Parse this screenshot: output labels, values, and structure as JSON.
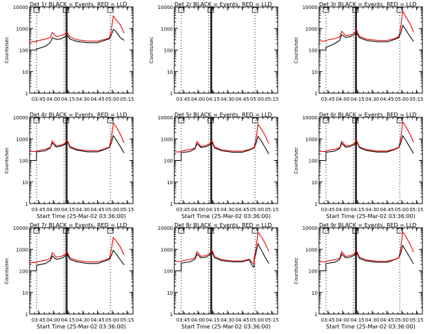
{
  "figure": {
    "xtick_labels": [
      "03:45",
      "04:00",
      "04:15",
      "04:30",
      "04:45",
      "05:00",
      "05:15"
    ],
    "ytick_labels": [
      "1",
      "10",
      "100",
      "1000",
      "10000"
    ],
    "colors": {
      "events": "#000000",
      "lld": "#e00000",
      "axes": "#000000",
      "background": "#ffffff"
    }
  },
  "chart_data": [
    {
      "type": "line",
      "detector": "1r",
      "title": "Det 1r BLACK = Events, RED = LLD",
      "xlabel": "",
      "ylabel": "Counts/sec",
      "xlim": [
        "03:36",
        "05:21"
      ],
      "ylim": [
        1,
        10000
      ],
      "yscale": "log",
      "vlines_dotted": [
        "03:43",
        "04:11",
        "04:58"
      ],
      "vlines_solid": [
        "04:13",
        "04:14"
      ],
      "series": [
        {
          "name": "Events",
          "color": "#000000",
          "x": [
            "03:36",
            "03:42",
            "03:43",
            "03:52",
            "03:57",
            "03:59",
            "04:03",
            "04:08",
            "04:12",
            "04:14",
            "04:17",
            "04:24",
            "04:35",
            "04:45",
            "04:52",
            "04:57",
            "04:59",
            "05:01",
            "05:04",
            "05:08",
            "05:12"
          ],
          "values": [
            100,
            100,
            110,
            150,
            220,
            380,
            310,
            330,
            420,
            500,
            320,
            250,
            220,
            220,
            280,
            330,
            500,
            900,
            700,
            380,
            280
          ]
        },
        {
          "name": "LLD",
          "color": "#e00000",
          "x": [
            "03:36",
            "03:42",
            "03:43",
            "03:52",
            "03:57",
            "03:59",
            "04:03",
            "04:08",
            "04:12",
            "04:14",
            "04:17",
            "04:24",
            "04:35",
            "04:45",
            "04:52",
            "04:57",
            "04:59",
            "05:01",
            "05:04",
            "05:08",
            "05:12"
          ],
          "values": [
            240,
            240,
            260,
            320,
            380,
            650,
            420,
            470,
            560,
            700,
            400,
            300,
            260,
            260,
            310,
            360,
            900,
            3800,
            2500,
            1500,
            600
          ]
        }
      ]
    },
    {
      "type": "line",
      "detector": "2r",
      "title": "Det 2r BLACK = Events, RED = LLD",
      "xlabel": "",
      "ylabel": "Counts/sec",
      "xlim": [
        "03:36",
        "05:21"
      ],
      "ylim": [
        1,
        10000
      ],
      "yscale": "log",
      "vlines_dotted": [
        "03:43",
        "04:11",
        "04:58"
      ],
      "vlines_solid": [
        "04:13",
        "04:14"
      ],
      "series": []
    },
    {
      "type": "line",
      "detector": "3r",
      "title": "Det 3r BLACK = Events, RED = LLD",
      "xlabel": "",
      "ylabel": "Counts/sec",
      "xlim": [
        "03:36",
        "05:21"
      ],
      "ylim": [
        1,
        10000
      ],
      "yscale": "log",
      "vlines_dotted": [
        "03:43",
        "04:11",
        "04:58"
      ],
      "vlines_solid": [
        "04:13",
        "04:14"
      ],
      "series": [
        {
          "name": "Events",
          "color": "#000000",
          "x": [
            "03:36",
            "03:42",
            "03:43",
            "03:52",
            "03:57",
            "03:59",
            "04:03",
            "04:08",
            "04:12",
            "04:14",
            "04:17",
            "04:24",
            "04:35",
            "04:45",
            "04:52",
            "04:57",
            "04:59",
            "05:01",
            "05:04",
            "05:08",
            "05:12"
          ],
          "values": [
            100,
            100,
            130,
            200,
            280,
            520,
            380,
            420,
            520,
            650,
            380,
            280,
            240,
            240,
            300,
            380,
            600,
            1400,
            900,
            450,
            250
          ]
        },
        {
          "name": "LLD",
          "color": "#e00000",
          "x": [
            "03:36",
            "03:42",
            "03:43",
            "03:52",
            "03:57",
            "03:59",
            "04:03",
            "04:08",
            "04:12",
            "04:14",
            "04:17",
            "04:24",
            "04:35",
            "04:45",
            "04:52",
            "04:57",
            "04:59",
            "05:01",
            "05:04",
            "05:08",
            "05:12"
          ],
          "values": [
            260,
            260,
            280,
            340,
            400,
            750,
            460,
            500,
            620,
            900,
            430,
            320,
            280,
            280,
            330,
            420,
            1200,
            6500,
            3500,
            1800,
            700
          ]
        }
      ]
    },
    {
      "type": "line",
      "detector": "4r",
      "title": "Det 4r BLACK = Events, RED = LLD",
      "xlabel": "Start Time (25-Mar-02 03:36:00)",
      "ylabel": "Counts/sec",
      "xlim": [
        "03:36",
        "05:21"
      ],
      "ylim": [
        1,
        10000
      ],
      "yscale": "log",
      "vlines_dotted": [
        "03:43",
        "04:11",
        "04:58"
      ],
      "vlines_solid": [
        "04:13",
        "04:14"
      ],
      "series": [
        {
          "name": "Events",
          "color": "#000000",
          "x": [
            "03:36",
            "03:42",
            "03:43",
            "03:52",
            "03:57",
            "03:59",
            "04:03",
            "04:08",
            "04:12",
            "04:14",
            "04:17",
            "04:24",
            "04:35",
            "04:45",
            "04:52",
            "04:57",
            "04:59",
            "05:01",
            "05:04",
            "05:08",
            "05:12"
          ],
          "values": [
            100,
            100,
            250,
            280,
            380,
            650,
            420,
            460,
            560,
            800,
            400,
            300,
            250,
            250,
            320,
            400,
            650,
            1400,
            900,
            450,
            220
          ]
        },
        {
          "name": "LLD",
          "color": "#e00000",
          "x": [
            "03:36",
            "03:42",
            "03:43",
            "03:52",
            "03:57",
            "03:59",
            "04:03",
            "04:08",
            "04:12",
            "04:14",
            "04:17",
            "04:24",
            "04:35",
            "04:45",
            "04:52",
            "04:57",
            "04:59",
            "05:01",
            "05:04",
            "05:08",
            "05:12"
          ],
          "values": [
            260,
            260,
            280,
            330,
            400,
            800,
            480,
            520,
            620,
            900,
            440,
            330,
            280,
            280,
            340,
            420,
            1100,
            5500,
            3500,
            1700,
            650
          ]
        }
      ]
    },
    {
      "type": "line",
      "detector": "5r",
      "title": "Det 5r BLACK = Events, RED = LLD",
      "xlabel": "Start Time (25-Mar-02 03:36:00)",
      "ylabel": "",
      "xlim": [
        "03:36",
        "05:21"
      ],
      "ylim": [
        1,
        10000
      ],
      "yscale": "log",
      "vlines_dotted": [
        "03:43",
        "04:11",
        "04:58"
      ],
      "vlines_solid": [
        "04:13",
        "04:14"
      ],
      "series": [
        {
          "name": "Events",
          "color": "#000000",
          "x": [
            "03:36",
            "03:42",
            "03:43",
            "03:52",
            "03:57",
            "03:59",
            "04:03",
            "04:08",
            "04:12",
            "04:14",
            "04:17",
            "04:24",
            "04:35",
            "04:45",
            "04:52",
            "04:57",
            "04:59",
            "05:01",
            "05:04",
            "05:08",
            "05:12"
          ],
          "values": [
            100,
            100,
            230,
            260,
            350,
            600,
            400,
            430,
            520,
            750,
            380,
            280,
            240,
            240,
            300,
            380,
            620,
            1300,
            850,
            420,
            200
          ]
        },
        {
          "name": "LLD",
          "color": "#e00000",
          "x": [
            "03:36",
            "03:42",
            "03:43",
            "03:52",
            "03:57",
            "03:59",
            "04:03",
            "04:08",
            "04:12",
            "04:14",
            "04:17",
            "04:24",
            "04:35",
            "04:45",
            "04:52",
            "04:57",
            "04:59",
            "05:01",
            "05:04",
            "05:08",
            "05:12"
          ],
          "values": [
            250,
            250,
            270,
            320,
            380,
            750,
            450,
            490,
            590,
            850,
            420,
            310,
            270,
            270,
            320,
            400,
            1000,
            4800,
            3000,
            1500,
            600
          ]
        }
      ]
    },
    {
      "type": "line",
      "detector": "6r",
      "title": "Det 6r BLACK = Events, RED = LLD",
      "xlabel": "Start Time (25-Mar-02 03:36:00)",
      "ylabel": "Counts/sec",
      "xlim": [
        "03:36",
        "05:21"
      ],
      "ylim": [
        1,
        10000
      ],
      "yscale": "log",
      "vlines_dotted": [
        "03:43",
        "04:11",
        "04:58"
      ],
      "vlines_solid": [
        "04:13",
        "04:14"
      ],
      "series": [
        {
          "name": "Events",
          "color": "#000000",
          "x": [
            "03:36",
            "03:42",
            "03:43",
            "03:52",
            "03:57",
            "03:59",
            "04:03",
            "04:08",
            "04:12",
            "04:14",
            "04:17",
            "04:24",
            "04:35",
            "04:45",
            "04:52",
            "04:57",
            "04:59",
            "05:01",
            "05:04",
            "05:08",
            "05:12"
          ],
          "values": [
            100,
            100,
            240,
            270,
            360,
            620,
            410,
            450,
            540,
            780,
            390,
            290,
            245,
            245,
            310,
            390,
            630,
            1400,
            880,
            430,
            210
          ]
        },
        {
          "name": "LLD",
          "color": "#e00000",
          "x": [
            "03:36",
            "03:42",
            "03:43",
            "03:52",
            "03:57",
            "03:59",
            "04:03",
            "04:08",
            "04:12",
            "04:14",
            "04:17",
            "04:24",
            "04:35",
            "04:45",
            "04:52",
            "04:57",
            "04:59",
            "05:01",
            "05:04",
            "05:08",
            "05:12"
          ],
          "values": [
            260,
            260,
            280,
            330,
            390,
            780,
            470,
            510,
            610,
            880,
            430,
            320,
            275,
            275,
            330,
            410,
            1050,
            6000,
            3800,
            1800,
            700
          ]
        }
      ]
    },
    {
      "type": "line",
      "detector": "7r",
      "title": "Det 7r BLACK = Events, RED = LLD",
      "xlabel": "Start Time (25-Mar-02 03:36:00)",
      "ylabel": "Counts/sec",
      "xlim": [
        "03:36",
        "05:21"
      ],
      "ylim": [
        1,
        10000
      ],
      "yscale": "log",
      "vlines_dotted": [
        "03:43",
        "04:11",
        "04:58"
      ],
      "vlines_solid": [
        "04:13",
        "04:14"
      ],
      "series": [
        {
          "name": "Events",
          "color": "#000000",
          "x": [
            "03:36",
            "03:42",
            "03:43",
            "03:52",
            "03:57",
            "03:59",
            "04:03",
            "04:08",
            "04:12",
            "04:14",
            "04:17",
            "04:24",
            "04:35",
            "04:45",
            "04:52",
            "04:57",
            "04:59",
            "05:01",
            "05:04",
            "05:08",
            "05:12"
          ],
          "values": [
            100,
            100,
            180,
            220,
            300,
            500,
            340,
            380,
            470,
            620,
            340,
            260,
            220,
            220,
            280,
            340,
            520,
            900,
            600,
            330,
            190
          ]
        },
        {
          "name": "LLD",
          "color": "#e00000",
          "x": [
            "03:36",
            "03:42",
            "03:43",
            "03:52",
            "03:57",
            "03:59",
            "04:03",
            "04:08",
            "04:12",
            "04:14",
            "04:17",
            "04:24",
            "04:35",
            "04:45",
            "04:52",
            "04:57",
            "04:59",
            "05:01",
            "05:04",
            "05:08",
            "05:12"
          ],
          "values": [
            240,
            240,
            260,
            310,
            370,
            700,
            430,
            470,
            570,
            800,
            400,
            300,
            260,
            260,
            310,
            380,
            950,
            3500,
            2400,
            1300,
            550
          ]
        }
      ]
    },
    {
      "type": "line",
      "detector": "8r",
      "title": "Det 8r BLACK = Events, RED = LLD",
      "xlabel": "Start Time (25-Mar-02 03:36:00)",
      "ylabel": "",
      "xlim": [
        "03:36",
        "05:21"
      ],
      "ylim": [
        1,
        10000
      ],
      "yscale": "log",
      "vlines_dotted": [
        "03:43",
        "04:11",
        "04:58"
      ],
      "vlines_solid": [
        "04:13",
        "04:14"
      ],
      "series": [
        {
          "name": "Events",
          "color": "#000000",
          "x": [
            "03:36",
            "03:42",
            "03:43",
            "03:52",
            "03:57",
            "03:59",
            "04:03",
            "04:08",
            "04:12",
            "04:14",
            "04:17",
            "04:24",
            "04:35",
            "04:45",
            "04:52",
            "04:56",
            "04:57",
            "04:59",
            "05:01",
            "05:04",
            "05:08",
            "05:12"
          ],
          "values": [
            100,
            100,
            230,
            260,
            350,
            600,
            400,
            430,
            540,
            800,
            400,
            300,
            260,
            260,
            330,
            150,
            300,
            700,
            1800,
            1000,
            450,
            220
          ]
        },
        {
          "name": "LLD",
          "color": "#e00000",
          "x": [
            "03:36",
            "03:42",
            "03:43",
            "03:52",
            "03:57",
            "03:59",
            "04:03",
            "04:08",
            "04:12",
            "04:14",
            "04:17",
            "04:24",
            "04:35",
            "04:45",
            "04:52",
            "04:56",
            "04:57",
            "04:59",
            "05:01",
            "05:04",
            "05:08",
            "05:12"
          ],
          "values": [
            270,
            270,
            290,
            340,
            400,
            780,
            470,
            510,
            620,
            950,
            450,
            330,
            290,
            290,
            350,
            220,
            360,
            1200,
            6000,
            4000,
            2000,
            800
          ]
        }
      ]
    },
    {
      "type": "line",
      "detector": "9r",
      "title": "Det 9r BLACK = Events, RED = LLD",
      "xlabel": "Start Time (25-Mar-02 03:36:00)",
      "ylabel": "Counts/sec",
      "xlim": [
        "03:36",
        "05:21"
      ],
      "ylim": [
        1,
        10000
      ],
      "yscale": "log",
      "vlines_dotted": [
        "03:43",
        "04:11",
        "04:58"
      ],
      "vlines_solid": [
        "04:13",
        "04:14"
      ],
      "series": [
        {
          "name": "Events",
          "color": "#000000",
          "x": [
            "03:36",
            "03:42",
            "03:43",
            "03:52",
            "03:57",
            "03:59",
            "04:03",
            "04:08",
            "04:12",
            "04:14",
            "04:17",
            "04:24",
            "04:35",
            "04:45",
            "04:52",
            "04:57",
            "04:59",
            "05:01",
            "05:04",
            "05:08",
            "05:12"
          ],
          "values": [
            100,
            100,
            220,
            250,
            340,
            600,
            400,
            440,
            530,
            760,
            380,
            290,
            250,
            250,
            320,
            400,
            650,
            1500,
            900,
            440,
            210
          ]
        },
        {
          "name": "LLD",
          "color": "#e00000",
          "x": [
            "03:36",
            "03:42",
            "03:43",
            "03:52",
            "03:57",
            "03:59",
            "04:03",
            "04:08",
            "04:12",
            "04:14",
            "04:17",
            "04:24",
            "04:35",
            "04:45",
            "04:52",
            "04:57",
            "04:59",
            "05:01",
            "05:04",
            "05:08",
            "05:12"
          ],
          "values": [
            260,
            260,
            280,
            330,
            390,
            780,
            470,
            510,
            610,
            880,
            430,
            320,
            280,
            280,
            330,
            410,
            1100,
            6500,
            4000,
            1900,
            750
          ]
        }
      ]
    }
  ]
}
